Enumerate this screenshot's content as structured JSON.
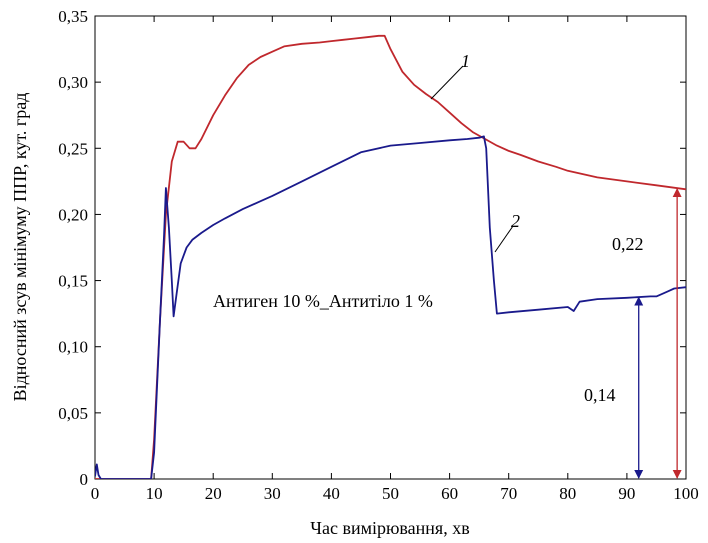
{
  "chart_data": {
    "type": "line",
    "xlabel": "Час вимірювання, хв",
    "ylabel": "Відносний зсув мінімуму ППР, кут. град",
    "xlim": [
      0,
      100
    ],
    "ylim": [
      0,
      0.35
    ],
    "grid": false,
    "x_ticks": [
      "0",
      "10",
      "20",
      "30",
      "40",
      "50",
      "60",
      "70",
      "80",
      "90",
      "100"
    ],
    "y_ticks": [
      "0",
      "0,05",
      "0,10",
      "0,15",
      "0,20",
      "0,25",
      "0,30",
      "0,35"
    ],
    "annotation_text": "Антиген 10 %_Антитіло 1 %",
    "series": [
      {
        "label": "1",
        "color": "#c0282d",
        "x": [
          0,
          9.5,
          10,
          11,
          12,
          13,
          14,
          15,
          16,
          17,
          18,
          20,
          22,
          24,
          26,
          28,
          30,
          32,
          35,
          38,
          40,
          42,
          44,
          46,
          48,
          49,
          50,
          52,
          54,
          56,
          58,
          60,
          62,
          64,
          66,
          68,
          70,
          72,
          75,
          78,
          80,
          85,
          90,
          95,
          100
        ],
        "y": [
          0,
          0,
          0.03,
          0.12,
          0.2,
          0.24,
          0.255,
          0.255,
          0.25,
          0.25,
          0.257,
          0.275,
          0.29,
          0.303,
          0.313,
          0.319,
          0.323,
          0.327,
          0.329,
          0.33,
          0.331,
          0.332,
          0.333,
          0.334,
          0.335,
          0.335,
          0.325,
          0.308,
          0.298,
          0.291,
          0.285,
          0.277,
          0.269,
          0.262,
          0.257,
          0.252,
          0.248,
          0.245,
          0.24,
          0.236,
          0.233,
          0.228,
          0.225,
          0.222,
          0.219
        ]
      },
      {
        "label": "2",
        "color": "#1a1a8c",
        "x": [
          0,
          0.3,
          0.6,
          1,
          3,
          6,
          9,
          9.5,
          10,
          11,
          11.7,
          12,
          12.5,
          13,
          13.3,
          13.8,
          14.5,
          15.5,
          16.5,
          18,
          20,
          22,
          25,
          28,
          30,
          35,
          40,
          45,
          50,
          55,
          60,
          63,
          65,
          65.8,
          66.2,
          66.8,
          67.5,
          68,
          70,
          75,
          80,
          81,
          82,
          85,
          90,
          94,
          95,
          96,
          97,
          98,
          100
        ],
        "y": [
          0.002,
          0.011,
          0.003,
          0,
          0,
          0,
          0,
          0,
          0.02,
          0.12,
          0.185,
          0.22,
          0.19,
          0.15,
          0.123,
          0.14,
          0.163,
          0.175,
          0.181,
          0.186,
          0.192,
          0.197,
          0.204,
          0.21,
          0.214,
          0.225,
          0.236,
          0.247,
          0.252,
          0.254,
          0.256,
          0.257,
          0.258,
          0.259,
          0.25,
          0.19,
          0.15,
          0.125,
          0.126,
          0.128,
          0.13,
          0.127,
          0.134,
          0.136,
          0.137,
          0.138,
          0.138,
          0.14,
          0.142,
          0.144,
          0.145
        ]
      }
    ],
    "markers": [
      {
        "label": "0,14",
        "color": "#1a1a8c",
        "x": 92,
        "y_from": 0,
        "y_to": 0.138
      },
      {
        "label": "0,22",
        "color": "#c0282d",
        "x": 98.5,
        "y_from": 0,
        "y_to": 0.22
      }
    ]
  }
}
